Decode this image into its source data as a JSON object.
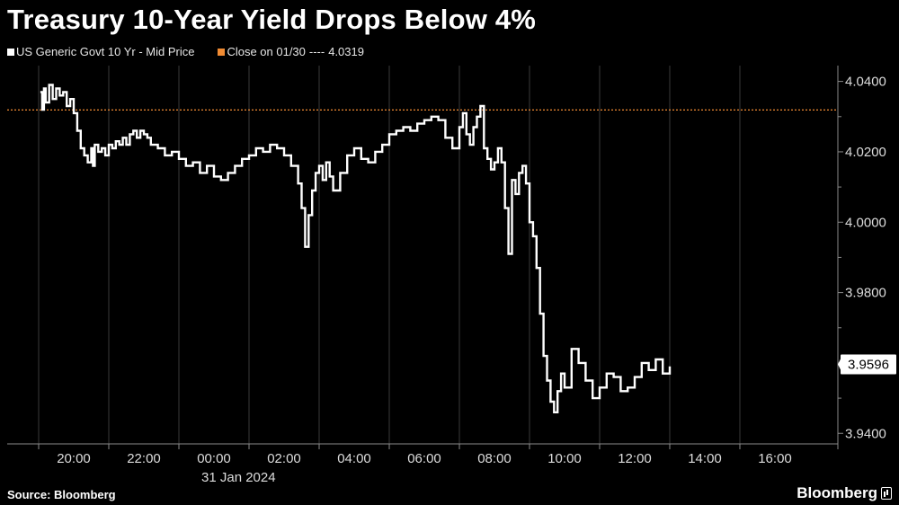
{
  "title": "Treasury 10-Year Yield Drops Below 4%",
  "legend": {
    "series_label": "US Generic Govt 10 Yr - Mid Price",
    "series_color": "#ffffff",
    "close_label": "Close on 01/30",
    "close_dashes": "----",
    "close_value": "4.0319",
    "close_color": "#f08b33"
  },
  "source": "Source: Bloomberg",
  "brand": "Bloomberg",
  "chart_data": {
    "type": "line",
    "title": "Treasury 10-Year Yield Drops Below 4%",
    "xlabel": "",
    "ylabel": "",
    "date_label": "31 Jan 2024",
    "x_tick_labels": [
      "20:00",
      "22:00",
      "00:00",
      "02:00",
      "04:00",
      "06:00",
      "08:00",
      "10:00",
      "12:00",
      "14:00",
      "16:00"
    ],
    "y_tick_labels": [
      "3.9400",
      "3.9600",
      "3.9800",
      "4.0000",
      "4.0200",
      "4.0400"
    ],
    "y_ticks": [
      3.94,
      3.96,
      3.98,
      4.0,
      4.02,
      4.04
    ],
    "ylim": [
      3.937,
      4.0445
    ],
    "xlim_hours": [
      19,
      26.5
    ],
    "x_unit": "hours relative to 00:00 on 31 Jan 2024",
    "last_value_label": "3.9596",
    "last_value": 3.9596,
    "reference_line": {
      "label": "Close on 01/30",
      "value": 4.0319,
      "color": "#f08b33"
    },
    "series": [
      {
        "name": "US Generic Govt 10 Yr - Mid Price",
        "color": "#ffffff",
        "x": [
          -4.95,
          -4.9,
          -4.85,
          -4.8,
          -4.7,
          -4.6,
          -4.5,
          -4.4,
          -4.3,
          -4.2,
          -4.1,
          -4.0,
          -3.9,
          -3.8,
          -3.7,
          -3.6,
          -3.5,
          -3.45,
          -3.4,
          -3.3,
          -3.2,
          -3.1,
          -3.0,
          -2.9,
          -2.8,
          -2.7,
          -2.6,
          -2.5,
          -2.4,
          -2.3,
          -2.2,
          -2.1,
          -2.0,
          -1.9,
          -1.8,
          -1.6,
          -1.4,
          -1.2,
          -1.0,
          -0.8,
          -0.6,
          -0.4,
          -0.2,
          0.0,
          0.2,
          0.4,
          0.6,
          0.8,
          1.0,
          1.2,
          1.4,
          1.6,
          1.8,
          2.0,
          2.2,
          2.4,
          2.5,
          2.6,
          2.7,
          2.8,
          2.9,
          3.0,
          3.1,
          3.2,
          3.3,
          3.4,
          3.6,
          3.8,
          4.0,
          4.2,
          4.4,
          4.6,
          4.8,
          5.0,
          5.2,
          5.4,
          5.6,
          5.8,
          6.0,
          6.2,
          6.4,
          6.6,
          6.8,
          7.0,
          7.1,
          7.2,
          7.3,
          7.4,
          7.5,
          7.6,
          7.7,
          7.8,
          7.9,
          8.0,
          8.1,
          8.2,
          8.3,
          8.4,
          8.5,
          8.6,
          8.7,
          8.8,
          8.9,
          9.0,
          9.1,
          9.2,
          9.3,
          9.4,
          9.5,
          9.6,
          9.7,
          9.8,
          9.9,
          10.0,
          10.2,
          10.4,
          10.6,
          10.8,
          11.0,
          11.2,
          11.4,
          11.6,
          11.8,
          12.0,
          12.2,
          12.4,
          12.6,
          12.8,
          13.0
        ],
        "y": [
          4.037,
          4.032,
          4.038,
          4.034,
          4.039,
          4.035,
          4.038,
          4.036,
          4.037,
          4.033,
          4.035,
          4.031,
          4.026,
          4.021,
          4.019,
          4.017,
          4.021,
          4.016,
          4.022,
          4.02,
          4.021,
          4.019,
          4.022,
          4.021,
          4.023,
          4.022,
          4.024,
          4.022,
          4.025,
          4.026,
          4.024,
          4.026,
          4.025,
          4.024,
          4.022,
          4.021,
          4.019,
          4.02,
          4.018,
          4.016,
          4.017,
          4.014,
          4.016,
          4.013,
          4.012,
          4.014,
          4.016,
          4.018,
          4.019,
          4.021,
          4.02,
          4.022,
          4.021,
          4.019,
          4.016,
          4.011,
          4.004,
          3.993,
          4.002,
          4.009,
          4.014,
          4.016,
          4.012,
          4.017,
          4.013,
          4.009,
          4.014,
          4.019,
          4.021,
          4.018,
          4.017,
          4.02,
          4.022,
          4.025,
          4.026,
          4.027,
          4.026,
          4.028,
          4.029,
          4.03,
          4.029,
          4.024,
          4.021,
          4.027,
          4.031,
          4.025,
          4.022,
          4.027,
          4.03,
          4.033,
          4.021,
          4.018,
          4.015,
          4.017,
          4.021,
          4.017,
          4.004,
          3.991,
          4.012,
          4.008,
          4.014,
          4.016,
          4.011,
          4.0,
          3.996,
          3.987,
          3.974,
          3.962,
          3.955,
          3.949,
          3.946,
          3.952,
          3.957,
          3.953,
          3.964,
          3.96,
          3.955,
          3.95,
          3.953,
          3.957,
          3.956,
          3.952,
          3.953,
          3.956,
          3.96,
          3.958,
          3.961,
          3.957,
          3.959
        ]
      }
    ]
  }
}
